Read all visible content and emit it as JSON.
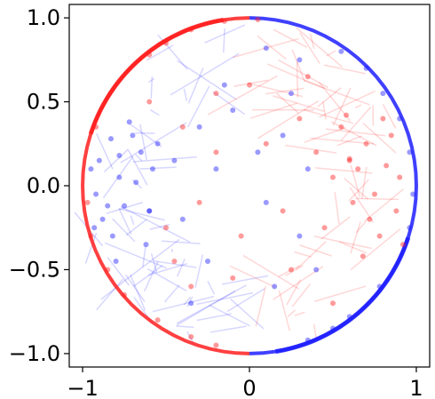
{
  "chart_data": {
    "type": "scatter",
    "title": "",
    "xlabel": "",
    "ylabel": "",
    "xlim": [
      -1.08,
      1.08
    ],
    "ylim": [
      -1.08,
      1.08
    ],
    "x_ticks": [
      {
        "value": -1,
        "label": "−1"
      },
      {
        "value": 0,
        "label": "0"
      },
      {
        "value": 1,
        "label": "1"
      }
    ],
    "y_ticks": [
      {
        "value": 1.0,
        "label": "1.0"
      },
      {
        "value": 0.5,
        "label": "0.5"
      },
      {
        "value": 0.0,
        "label": "0.0"
      },
      {
        "value": -0.5,
        "label": "−0.5"
      },
      {
        "value": -1.0,
        "label": "−1.0"
      }
    ],
    "grid": false,
    "legend": "none",
    "colors": {
      "blue": "#1f1fff",
      "red": "#ff1f1f"
    },
    "series": [
      {
        "color": "#1f1fff",
        "points": [
          [
            -0.83,
            0.28
          ],
          [
            -0.9,
            0.15
          ],
          [
            -0.78,
            0.05
          ],
          [
            -0.92,
            -0.05
          ],
          [
            -0.75,
            -0.12
          ],
          [
            -0.88,
            -0.2
          ],
          [
            -0.7,
            0.3
          ],
          [
            -0.95,
            0.1
          ],
          [
            -0.82,
            -0.3
          ],
          [
            -0.65,
            0.2
          ],
          [
            -0.6,
            -0.15
          ],
          [
            -0.72,
            0.38
          ],
          [
            -0.85,
            -0.12
          ],
          [
            -0.78,
            0.18
          ],
          [
            -0.93,
            -0.25
          ],
          [
            -0.68,
            0.02
          ],
          [
            -0.55,
            0.25
          ],
          [
            -0.62,
            -0.35
          ],
          [
            -0.8,
            -0.45
          ],
          [
            -0.58,
            0.1
          ],
          [
            -0.45,
            0.15
          ],
          [
            -0.4,
            -0.2
          ],
          [
            -0.3,
            0.35
          ],
          [
            -0.2,
            0.1
          ],
          [
            -0.1,
            0.45
          ],
          [
            0.05,
            0.2
          ],
          [
            0.1,
            -0.1
          ],
          [
            -0.25,
            -0.45
          ],
          [
            0.2,
            0.3
          ],
          [
            0.3,
            -0.3
          ],
          [
            -0.15,
            0.6
          ],
          [
            0.25,
            0.55
          ],
          [
            0.35,
            0.1
          ],
          [
            -0.35,
            -0.7
          ],
          [
            0.15,
            -0.6
          ],
          [
            0.4,
            -0.5
          ],
          [
            0.3,
            0.75
          ],
          [
            0.1,
            0.82
          ],
          [
            0.55,
            0.8
          ],
          [
            0.7,
            0.7
          ],
          [
            0.8,
            0.55
          ],
          [
            0.9,
            0.4
          ],
          [
            0.96,
            0.2
          ],
          [
            0.98,
            -0.05
          ],
          [
            0.96,
            -0.25
          ],
          [
            0.5,
            -0.85
          ],
          [
            0.35,
            -0.92
          ],
          [
            0.6,
            -0.78
          ],
          [
            0.78,
            -0.6
          ],
          [
            -0.6,
            -0.15
          ]
        ]
      },
      {
        "color": "#ff1f1f",
        "points": [
          [
            0.82,
            0.12
          ],
          [
            0.75,
            -0.05
          ],
          [
            0.88,
            -0.15
          ],
          [
            0.7,
            0.25
          ],
          [
            0.9,
            0.05
          ],
          [
            0.78,
            -0.3
          ],
          [
            0.65,
            0.1
          ],
          [
            0.85,
            0.3
          ],
          [
            0.72,
            -0.2
          ],
          [
            0.6,
            0.15
          ],
          [
            0.92,
            -0.35
          ],
          [
            0.68,
            -0.42
          ],
          [
            0.8,
            0.4
          ],
          [
            0.55,
            0.35
          ],
          [
            0.62,
            -0.1
          ],
          [
            0.5,
            0.05
          ],
          [
            0.45,
            -0.25
          ],
          [
            0.58,
            0.42
          ],
          [
            0.4,
            0.2
          ],
          [
            0.6,
            0.16
          ],
          [
            0.3,
            0.4
          ],
          [
            0.2,
            -0.15
          ],
          [
            0.1,
            0.25
          ],
          [
            -0.05,
            -0.3
          ],
          [
            -0.2,
            0.2
          ],
          [
            -0.3,
            -0.1
          ],
          [
            -0.4,
            0.35
          ],
          [
            0.25,
            -0.5
          ],
          [
            -0.1,
            -0.55
          ],
          [
            -0.35,
            -0.6
          ],
          [
            -0.45,
            -0.45
          ],
          [
            -0.2,
            0.55
          ],
          [
            0.0,
            0.6
          ],
          [
            -0.5,
            -0.25
          ],
          [
            -0.6,
            0.5
          ],
          [
            -0.75,
            -0.65
          ],
          [
            -0.85,
            -0.5
          ],
          [
            -0.55,
            -0.8
          ],
          [
            -0.35,
            -0.9
          ],
          [
            -0.2,
            -0.95
          ],
          [
            -0.6,
            0.78
          ],
          [
            -0.5,
            0.85
          ],
          [
            -0.35,
            0.93
          ],
          [
            -0.15,
            0.98
          ],
          [
            0.05,
            0.99
          ],
          [
            -0.92,
            0.35
          ],
          [
            -0.97,
            -0.1
          ],
          [
            -0.95,
            -0.3
          ],
          [
            0.5,
            -0.7
          ],
          [
            0.35,
            0.65
          ]
        ]
      }
    ]
  }
}
